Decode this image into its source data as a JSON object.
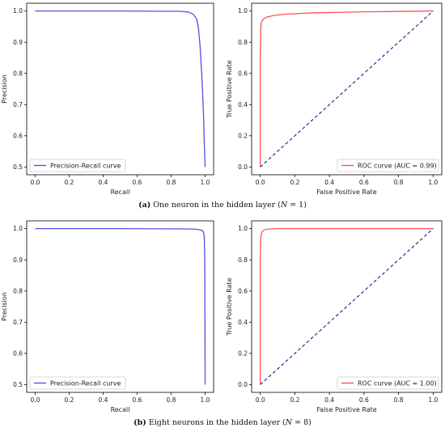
{
  "captions": [
    {
      "letter": "(a)",
      "text": " One neuron in the hidden layer (",
      "var": "N",
      "rest": " = 1)"
    },
    {
      "letter": "(b)",
      "text": " Eight neurons in the hidden layer (",
      "var": "N",
      "rest": " = 8)"
    }
  ],
  "chart_data": [
    {
      "type": "line",
      "panel": "a",
      "xlabel": "Recall",
      "ylabel": "Precision",
      "xlim": [
        -0.05,
        1.05
      ],
      "ylim": [
        0.475,
        1.025
      ],
      "xticks": [
        "0.0",
        "0.2",
        "0.4",
        "0.6",
        "0.8",
        "1.0"
      ],
      "yticks": [
        "0.5",
        "0.6",
        "0.7",
        "0.8",
        "0.9",
        "1.0"
      ],
      "legend_position": "bottom-left",
      "series": [
        {
          "name": "Precision-Recall curve",
          "color": "#5050e8",
          "style": "solid",
          "x": [
            0.0,
            0.5,
            0.85,
            0.9,
            0.93,
            0.95,
            0.96,
            0.97,
            0.98,
            0.99,
            0.995,
            1.0
          ],
          "y": [
            1.0,
            1.0,
            0.999,
            0.997,
            0.99,
            0.975,
            0.95,
            0.89,
            0.8,
            0.68,
            0.58,
            0.5
          ]
        }
      ]
    },
    {
      "type": "line",
      "panel": "a",
      "xlabel": "False Positive Rate",
      "ylabel": "True Positive Rate",
      "xlim": [
        -0.05,
        1.05
      ],
      "ylim": [
        -0.05,
        1.05
      ],
      "xticks": [
        "0.0",
        "0.2",
        "0.4",
        "0.6",
        "0.8",
        "1.0"
      ],
      "yticks": [
        "0.0",
        "0.2",
        "0.4",
        "0.6",
        "0.8",
        "1.0"
      ],
      "legend_position": "top-right",
      "series": [
        {
          "name": "ROC curve (AUC = 0.99)",
          "color": "#ff5050",
          "style": "solid",
          "x": [
            0.0,
            0.0,
            0.003,
            0.005,
            0.01,
            0.02,
            0.04,
            0.08,
            0.15,
            0.3,
            0.6,
            1.0
          ],
          "y": [
            0.0,
            0.7,
            0.88,
            0.92,
            0.935,
            0.95,
            0.962,
            0.972,
            0.98,
            0.988,
            0.995,
            1.0
          ]
        },
        {
          "color": "#1a1a8c",
          "style": "dashed",
          "x": [
            0,
            1
          ],
          "y": [
            0,
            1
          ]
        }
      ]
    },
    {
      "type": "line",
      "panel": "b",
      "xlabel": "Recall",
      "ylabel": "Precision",
      "xlim": [
        -0.05,
        1.05
      ],
      "ylim": [
        0.475,
        1.025
      ],
      "xticks": [
        "0.0",
        "0.2",
        "0.4",
        "0.6",
        "0.8",
        "1.0"
      ],
      "yticks": [
        "0.5",
        "0.6",
        "0.7",
        "0.8",
        "0.9",
        "1.0"
      ],
      "legend_position": "bottom-left",
      "series": [
        {
          "name": "Precision-Recall curve",
          "color": "#5050e8",
          "style": "solid",
          "x": [
            0.0,
            0.5,
            0.9,
            0.95,
            0.98,
            0.99,
            0.995,
            0.998,
            1.0
          ],
          "y": [
            1.0,
            1.0,
            0.999,
            0.998,
            0.995,
            0.99,
            0.975,
            0.9,
            0.5
          ]
        }
      ]
    },
    {
      "type": "line",
      "panel": "b",
      "xlabel": "False Positive Rate",
      "ylabel": "True Positive Rate",
      "xlim": [
        -0.05,
        1.05
      ],
      "ylim": [
        -0.05,
        1.05
      ],
      "xticks": [
        "0.0",
        "0.2",
        "0.4",
        "0.6",
        "0.8",
        "1.0"
      ],
      "yticks": [
        "0.0",
        "0.2",
        "0.4",
        "0.6",
        "0.8",
        "1.0"
      ],
      "legend_position": "bottom-right",
      "series": [
        {
          "name": "ROC curve (AUC = 1.00)",
          "color": "#ff5050",
          "style": "solid",
          "x": [
            0.0,
            0.0,
            0.002,
            0.005,
            0.01,
            0.02,
            0.04,
            0.1,
            1.0
          ],
          "y": [
            0.0,
            0.8,
            0.93,
            0.96,
            0.98,
            0.99,
            0.997,
            1.0,
            1.0
          ]
        },
        {
          "color": "#1a1a8c",
          "style": "dashed",
          "x": [
            0,
            1
          ],
          "y": [
            0,
            1
          ]
        }
      ]
    }
  ]
}
